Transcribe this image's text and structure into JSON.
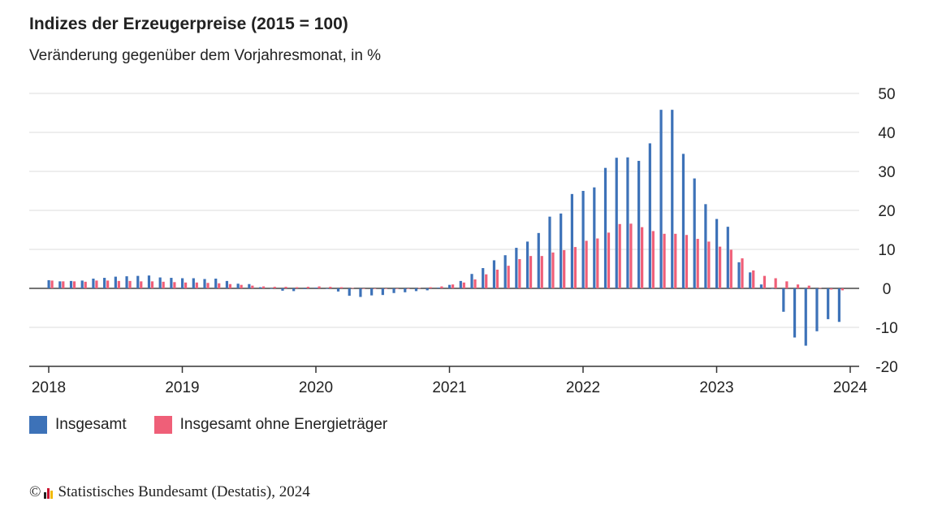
{
  "header": {
    "title": "Indizes der Erzeugerpreise (2015 = 100)",
    "subtitle": "Veränderung gegenüber dem Vorjahresmonat, in %"
  },
  "legend": {
    "series1": "Insgesamt",
    "series2": "Insgesamt ohne Energieträger"
  },
  "footer": {
    "copyright": "©",
    "source": "Statistisches Bundesamt (Destatis), 2024"
  },
  "colors": {
    "series1": "#3d72b8",
    "series2": "#ef5f78",
    "grid": "#dcdcdc",
    "axis": "#333333"
  },
  "chart_data": {
    "type": "bar",
    "title": "Indizes der Erzeugerpreise (2015 = 100)",
    "subtitle": "Veränderung gegenüber dem Vorjahresmonat, in %",
    "xlabel": "",
    "ylabel": "",
    "ylim": [
      -20,
      50
    ],
    "yticks": [
      50,
      40,
      30,
      20,
      10,
      0,
      -10,
      -20
    ],
    "xticks": [
      "2018",
      "2019",
      "2020",
      "2021",
      "2022",
      "2023",
      "2024"
    ],
    "grid": true,
    "legend_position": "bottom-left",
    "categories": [
      "2018-01",
      "2018-02",
      "2018-03",
      "2018-04",
      "2018-05",
      "2018-06",
      "2018-07",
      "2018-08",
      "2018-09",
      "2018-10",
      "2018-11",
      "2018-12",
      "2019-01",
      "2019-02",
      "2019-03",
      "2019-04",
      "2019-05",
      "2019-06",
      "2019-07",
      "2019-08",
      "2019-09",
      "2019-10",
      "2019-11",
      "2019-12",
      "2020-01",
      "2020-02",
      "2020-03",
      "2020-04",
      "2020-05",
      "2020-06",
      "2020-07",
      "2020-08",
      "2020-09",
      "2020-10",
      "2020-11",
      "2020-12",
      "2021-01",
      "2021-02",
      "2021-03",
      "2021-04",
      "2021-05",
      "2021-06",
      "2021-07",
      "2021-08",
      "2021-09",
      "2021-10",
      "2021-11",
      "2021-12",
      "2022-01",
      "2022-02",
      "2022-03",
      "2022-04",
      "2022-05",
      "2022-06",
      "2022-07",
      "2022-08",
      "2022-09",
      "2022-10",
      "2022-11",
      "2022-12",
      "2023-01",
      "2023-02",
      "2023-03",
      "2023-04",
      "2023-05",
      "2023-06",
      "2023-07",
      "2023-08",
      "2023-09",
      "2023-10",
      "2023-11",
      "2023-12"
    ],
    "series": [
      {
        "name": "Insgesamt",
        "values": [
          2.1,
          1.8,
          1.9,
          2.0,
          2.5,
          2.7,
          3.0,
          3.1,
          3.2,
          3.3,
          2.8,
          2.7,
          2.6,
          2.6,
          2.4,
          2.5,
          1.9,
          1.2,
          1.1,
          0.3,
          -0.1,
          -0.6,
          -0.7,
          -0.2,
          0.2,
          -0.1,
          -0.8,
          -1.9,
          -2.2,
          -1.8,
          -1.7,
          -1.2,
          -1.0,
          -0.7,
          -0.5,
          0.2,
          0.9,
          1.9,
          3.7,
          5.2,
          7.2,
          8.5,
          10.4,
          12.0,
          14.2,
          18.4,
          19.2,
          24.2,
          25.0,
          25.9,
          30.9,
          33.5,
          33.6,
          32.7,
          37.2,
          45.8,
          45.8,
          34.5,
          28.2,
          21.6,
          17.8,
          15.8,
          6.7,
          4.1,
          1.0,
          -0.1,
          -6.0,
          -12.6,
          -14.7,
          -11.0,
          -7.9,
          -8.6
        ]
      },
      {
        "name": "Insgesamt ohne Energieträger",
        "values": [
          2.0,
          1.8,
          1.8,
          1.7,
          2.0,
          2.0,
          1.9,
          1.9,
          1.8,
          1.8,
          1.7,
          1.6,
          1.5,
          1.5,
          1.4,
          1.3,
          1.1,
          0.9,
          0.7,
          0.5,
          0.4,
          0.4,
          0.3,
          0.4,
          0.5,
          0.4,
          0.3,
          0.1,
          0.0,
          -0.1,
          -0.1,
          -0.1,
          0.0,
          0.1,
          0.3,
          0.5,
          1.0,
          1.5,
          2.3,
          3.6,
          4.8,
          5.8,
          7.5,
          8.3,
          8.3,
          9.2,
          9.8,
          10.6,
          12.2,
          12.8,
          14.3,
          16.5,
          16.6,
          15.7,
          14.7,
          14.0,
          14.0,
          13.7,
          12.7,
          12.0,
          10.7,
          9.9,
          7.7,
          4.6,
          3.2,
          2.6,
          1.8,
          1.0,
          0.7,
          0.1,
          -0.3,
          -0.5
        ]
      }
    ]
  }
}
